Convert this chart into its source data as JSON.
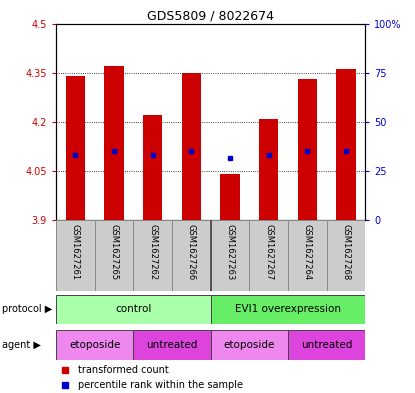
{
  "title": "GDS5809 / 8022674",
  "samples": [
    "GSM1627261",
    "GSM1627265",
    "GSM1627262",
    "GSM1627266",
    "GSM1627263",
    "GSM1627267",
    "GSM1627264",
    "GSM1627268"
  ],
  "bar_tops": [
    4.34,
    4.37,
    4.22,
    4.35,
    4.04,
    4.21,
    4.33,
    4.36
  ],
  "bar_bottom": 3.9,
  "percentile_values": [
    4.1,
    4.11,
    4.1,
    4.11,
    4.09,
    4.1,
    4.11,
    4.11
  ],
  "ylim_left": [
    3.9,
    4.5
  ],
  "ylim_right": [
    0,
    100
  ],
  "yticks_left": [
    3.9,
    4.05,
    4.2,
    4.35,
    4.5
  ],
  "yticks_right": [
    0,
    25,
    50,
    75,
    100
  ],
  "ytick_labels_left": [
    "3.9",
    "4.05",
    "4.2",
    "4.35",
    "4.5"
  ],
  "ytick_labels_right": [
    "0",
    "25",
    "50",
    "75",
    "100%"
  ],
  "bar_color": "#cc0000",
  "percentile_color": "#0000cc",
  "protocol_colors": [
    "#b0f0b0",
    "#66dd66"
  ],
  "protocol_labels": [
    "control",
    "EVI1 overexpression"
  ],
  "agent_colors": [
    "#dd88dd",
    "#ee44ee"
  ],
  "agent_labels": [
    "etoposide",
    "untreated",
    "etoposide",
    "untreated"
  ],
  "agent_boundaries": [
    0,
    2,
    4,
    6,
    8
  ],
  "protocol_label": "protocol",
  "agent_label": "agent",
  "legend_items": [
    {
      "label": "transformed count",
      "color": "#cc0000"
    },
    {
      "label": "percentile rank within the sample",
      "color": "#0000cc"
    }
  ],
  "bg_color": "#ffffff",
  "bar_width": 0.5,
  "sample_bg_color": "#cccccc",
  "sample_border_color": "#888888"
}
